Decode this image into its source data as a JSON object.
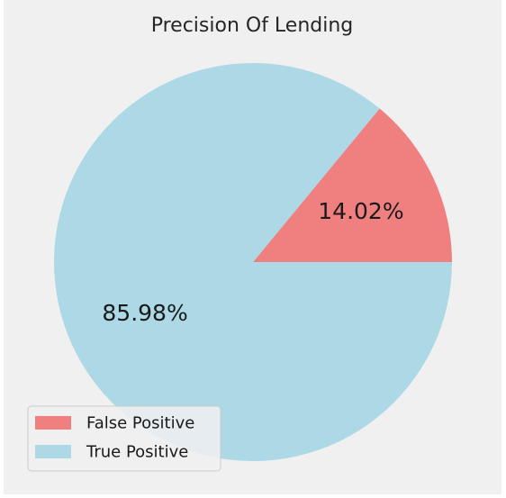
{
  "chart_data": {
    "type": "pie",
    "title": "Precision Of Lending",
    "slices": [
      {
        "name": "False Positive",
        "value": 14.02,
        "label": "14.02%",
        "color": "#f08080"
      },
      {
        "name": "True Positive",
        "value": 85.98,
        "label": "85.98%",
        "color": "#add8e6"
      }
    ],
    "start_angle_deg": 0,
    "direction": "counterclockwise",
    "legend_position": "lower-left"
  }
}
